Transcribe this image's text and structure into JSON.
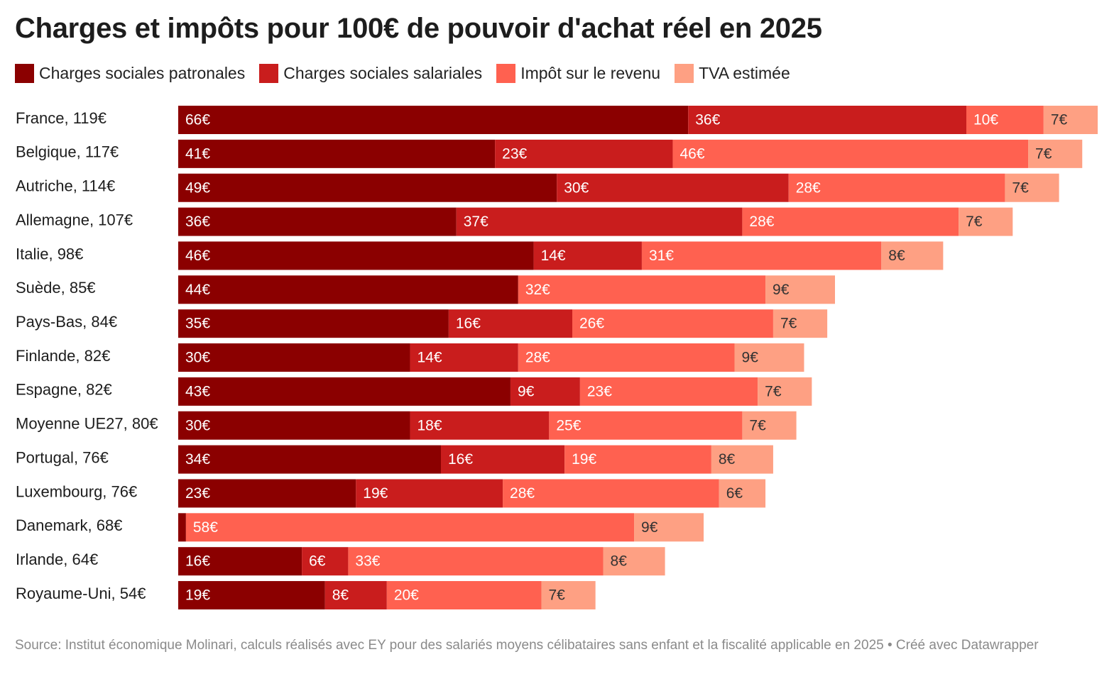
{
  "title": "Charges et impôts pour 100€ de pouvoir d'achat réel en 2025",
  "source": "Source: Institut économique Molinari, calculs réalisés avec EY pour des salariés moyens célibataires sans enfant et la fiscalité applicable en 2025 • Créé avec Datawrapper",
  "chart_data": {
    "type": "bar",
    "orientation": "horizontal",
    "stacked": true,
    "title": "Charges et impôts pour 100€ de pouvoir d'achat réel en 2025",
    "unit": "€",
    "categories": [
      "France, 119€",
      "Belgique, 117€",
      "Autriche, 114€",
      "Allemagne, 107€",
      "Italie, 98€",
      "Suède, 85€",
      "Pays-Bas, 84€",
      "Finlande, 82€",
      "Espagne, 82€",
      "Moyenne UE27, 80€",
      "Portugal, 76€",
      "Luxembourg, 76€",
      "Danemark, 68€",
      "Irlande, 64€",
      "Royaume-Uni, 54€"
    ],
    "series": [
      {
        "name": "Charges sociales patronales",
        "color": "#8b0000",
        "label_color": "#ffffff",
        "values": [
          66,
          41,
          49,
          36,
          46,
          44,
          35,
          30,
          43,
          30,
          34,
          23,
          1,
          16,
          19
        ],
        "labels": [
          "66€",
          "41€",
          "49€",
          "36€",
          "46€",
          "44€",
          "35€",
          "30€",
          "43€",
          "30€",
          "34€",
          "23€",
          "",
          "16€",
          "19€"
        ]
      },
      {
        "name": "Charges sociales salariales",
        "color": "#c91d1d",
        "label_color": "#ffffff",
        "values": [
          36,
          23,
          30,
          37,
          14,
          0,
          16,
          14,
          9,
          18,
          16,
          19,
          0,
          6,
          8
        ],
        "labels": [
          "36€",
          "23€",
          "30€",
          "37€",
          "14€",
          "",
          "16€",
          "14€",
          "9€",
          "18€",
          "16€",
          "19€",
          "",
          "6€",
          "8€"
        ]
      },
      {
        "name": "Impôt sur le revenu",
        "color": "#ff6150",
        "label_color": "#ffffff",
        "values": [
          10,
          46,
          28,
          28,
          31,
          32,
          26,
          28,
          23,
          25,
          19,
          28,
          58,
          33,
          20
        ],
        "labels": [
          "10€",
          "46€",
          "28€",
          "28€",
          "31€",
          "32€",
          "26€",
          "28€",
          "23€",
          "25€",
          "19€",
          "28€",
          "58€",
          "33€",
          "20€"
        ]
      },
      {
        "name": "TVA estimée",
        "color": "#fea083",
        "label_color": "#333333",
        "values": [
          7,
          7,
          7,
          7,
          8,
          9,
          7,
          9,
          7,
          7,
          8,
          6,
          9,
          8,
          7
        ],
        "labels": [
          "7€",
          "7€",
          "7€",
          "7€",
          "8€",
          "9€",
          "7€",
          "9€",
          "7€",
          "7€",
          "8€",
          "6€",
          "9€",
          "8€",
          "7€"
        ]
      }
    ],
    "xlim": [
      0,
      119
    ],
    "grid": false,
    "legend": "top-left"
  }
}
